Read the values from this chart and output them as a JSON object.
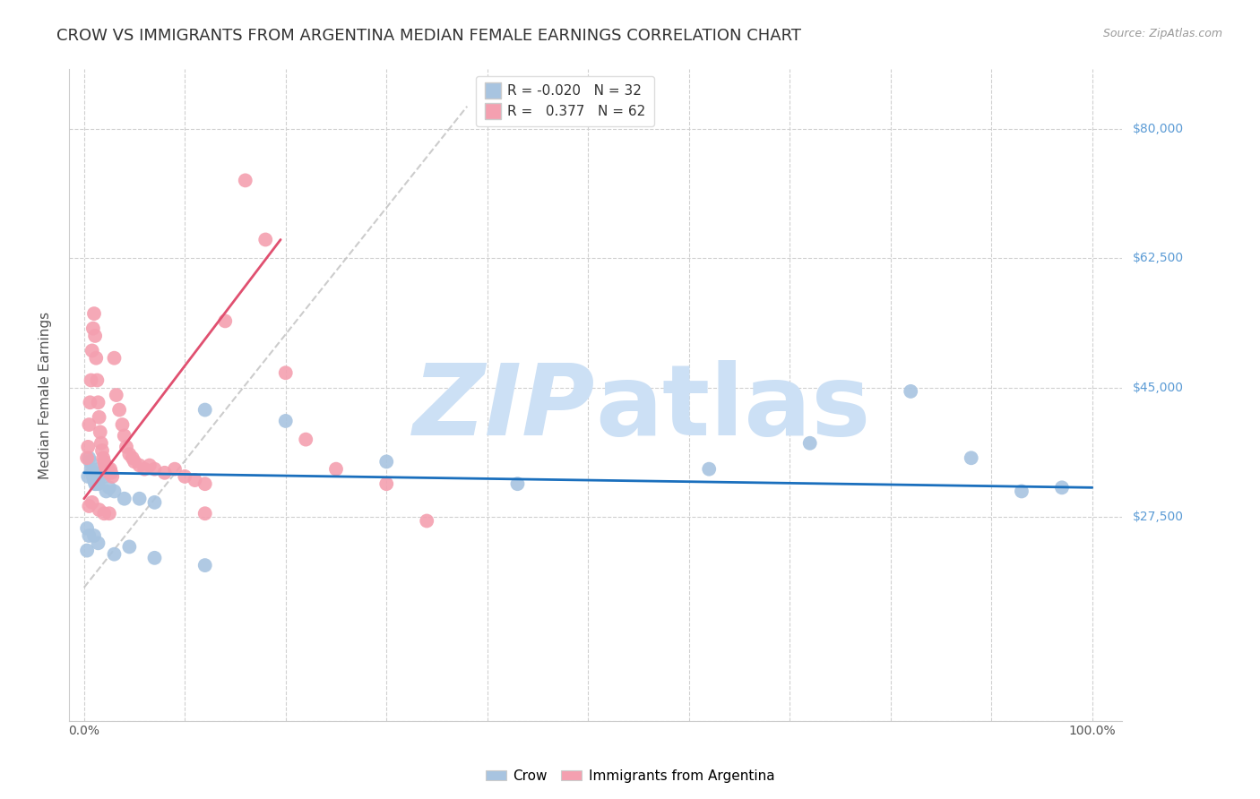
{
  "title": "CROW VS IMMIGRANTS FROM ARGENTINA MEDIAN FEMALE EARNINGS CORRELATION CHART",
  "source": "Source: ZipAtlas.com",
  "ylabel": "Median Female Earnings",
  "legend_R": [
    "-0.020",
    "0.377"
  ],
  "legend_N": [
    "32",
    "62"
  ],
  "crow_color": "#a8c4e0",
  "argentina_color": "#f4a0b0",
  "crow_line_color": "#1a6fbd",
  "argentina_line_color": "#e05070",
  "ytick_vals": [
    0,
    27500,
    45000,
    62500,
    80000
  ],
  "ytick_labels_right": [
    "",
    "$27,500",
    "$45,000",
    "$62,500",
    "$80,000"
  ],
  "xtick_vals": [
    0.0,
    0.1,
    0.2,
    0.3,
    0.4,
    0.5,
    0.6,
    0.7,
    0.8,
    0.9,
    1.0
  ],
  "xtick_labels": [
    "0.0%",
    "",
    "",
    "",
    "",
    "",
    "",
    "",
    "",
    "",
    "100.0%"
  ],
  "xlim": [
    -0.015,
    1.03
  ],
  "ylim": [
    10000,
    88000
  ],
  "crow_x": [
    0.003,
    0.004,
    0.005,
    0.006,
    0.007,
    0.008,
    0.009,
    0.01,
    0.011,
    0.012,
    0.013,
    0.014,
    0.015,
    0.016,
    0.018,
    0.02,
    0.022,
    0.025,
    0.03,
    0.04,
    0.055,
    0.07,
    0.12,
    0.2,
    0.3,
    0.43,
    0.62,
    0.72,
    0.82,
    0.88,
    0.93,
    0.97
  ],
  "crow_y": [
    26000,
    33000,
    35500,
    35000,
    34000,
    33500,
    33000,
    32500,
    32000,
    32000,
    32500,
    32000,
    34000,
    33000,
    33500,
    33000,
    31000,
    31500,
    31000,
    30000,
    30000,
    29500,
    42000,
    40500,
    35000,
    32000,
    34000,
    37500,
    44500,
    35500,
    31000,
    31500
  ],
  "crow_x_low": [
    0.003,
    0.005,
    0.01,
    0.014,
    0.03,
    0.045,
    0.07,
    0.12
  ],
  "crow_y_low": [
    23000,
    25000,
    25000,
    24000,
    22500,
    23500,
    22000,
    21000
  ],
  "argentina_x": [
    0.003,
    0.004,
    0.005,
    0.006,
    0.007,
    0.008,
    0.009,
    0.01,
    0.011,
    0.012,
    0.013,
    0.014,
    0.015,
    0.016,
    0.017,
    0.018,
    0.019,
    0.02,
    0.021,
    0.022,
    0.023,
    0.024,
    0.025,
    0.026,
    0.027,
    0.028,
    0.03,
    0.032,
    0.035,
    0.038,
    0.04,
    0.042,
    0.045,
    0.048,
    0.05,
    0.055,
    0.06,
    0.065,
    0.07,
    0.08,
    0.09,
    0.1,
    0.11,
    0.12,
    0.14,
    0.16,
    0.18,
    0.2,
    0.22,
    0.25,
    0.3,
    0.34
  ],
  "argentina_y": [
    35500,
    37000,
    40000,
    43000,
    46000,
    50000,
    53000,
    55000,
    52000,
    49000,
    46000,
    43000,
    41000,
    39000,
    37500,
    36500,
    35500,
    35000,
    34500,
    34000,
    34000,
    34000,
    33500,
    34000,
    33500,
    33000,
    49000,
    44000,
    42000,
    40000,
    38500,
    37000,
    36000,
    35500,
    35000,
    34500,
    34000,
    34500,
    34000,
    33500,
    34000,
    33000,
    32500,
    32000,
    54000,
    73000,
    65000,
    47000,
    38000,
    34000,
    32000,
    27000
  ],
  "argentina_x_low": [
    0.005,
    0.008,
    0.015,
    0.02,
    0.025,
    0.12
  ],
  "argentina_y_low": [
    29000,
    29500,
    28500,
    28000,
    28000,
    28000
  ],
  "crow_line_x": [
    0.0,
    1.0
  ],
  "crow_line_y": [
    33500,
    31500
  ],
  "argentina_line_x": [
    0.0,
    0.195
  ],
  "argentina_line_y": [
    30000,
    65000
  ],
  "diag_line_x": [
    0.0,
    0.38
  ],
  "diag_line_y": [
    18000,
    83000
  ],
  "background_color": "#ffffff",
  "grid_color": "#d0d0d0",
  "title_color": "#333333",
  "right_label_color": "#5b9bd5",
  "watermark_zip": "ZIP",
  "watermark_atlas": "atlas",
  "watermark_color": "#cce0f5",
  "watermark_fontsize": 80,
  "title_fontsize": 13,
  "axis_label_fontsize": 11,
  "tick_fontsize": 10,
  "legend_fontsize": 11,
  "source_fontsize": 9
}
